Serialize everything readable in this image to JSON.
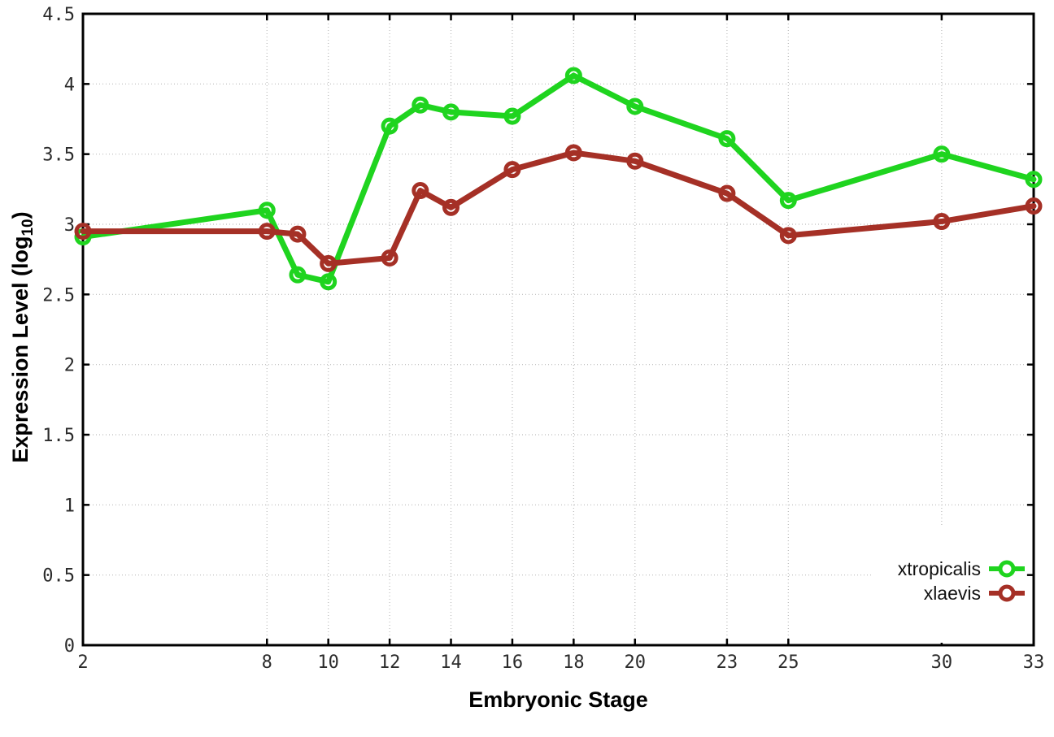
{
  "chart_data": {
    "type": "line",
    "title": "",
    "xlabel": "Embryonic Stage",
    "ylabel": "Expression Level (log10)",
    "ylabel_prefix": "Expression Level (log",
    "ylabel_sub": "10",
    "ylabel_suffix": ")",
    "xlim": [
      2,
      33
    ],
    "ylim": [
      0,
      4.5
    ],
    "x_ticks": [
      "2",
      "8",
      "10",
      "12",
      "14",
      "16",
      "18",
      "20",
      "23",
      "25",
      "30",
      "33"
    ],
    "y_ticks": [
      "0",
      "0.5",
      "1",
      "1.5",
      "2",
      "2.5",
      "3",
      "3.5",
      "4",
      "4.5"
    ],
    "grid": "dotted",
    "legend_position": "inside bottom-right",
    "marker": "open-circle",
    "x": [
      2,
      8,
      9,
      10,
      12,
      13,
      14,
      16,
      18,
      20,
      23,
      25,
      30,
      33
    ],
    "series": [
      {
        "name": "xtropicalis",
        "color": "#1fd41f",
        "values": [
          2.91,
          3.1,
          2.64,
          2.59,
          3.7,
          3.85,
          3.8,
          3.77,
          4.06,
          3.84,
          3.61,
          3.17,
          3.5,
          3.32
        ]
      },
      {
        "name": "xlaevis",
        "color": "#a53026",
        "values": [
          2.95,
          2.95,
          2.93,
          2.72,
          2.76,
          3.24,
          3.12,
          3.39,
          3.51,
          3.45,
          3.22,
          2.92,
          3.02,
          3.13
        ]
      }
    ]
  },
  "colors": {
    "background": "#ffffff",
    "border": "#000000",
    "grid": "#bcbcbc",
    "tick_label": "#2b2b2b"
  }
}
